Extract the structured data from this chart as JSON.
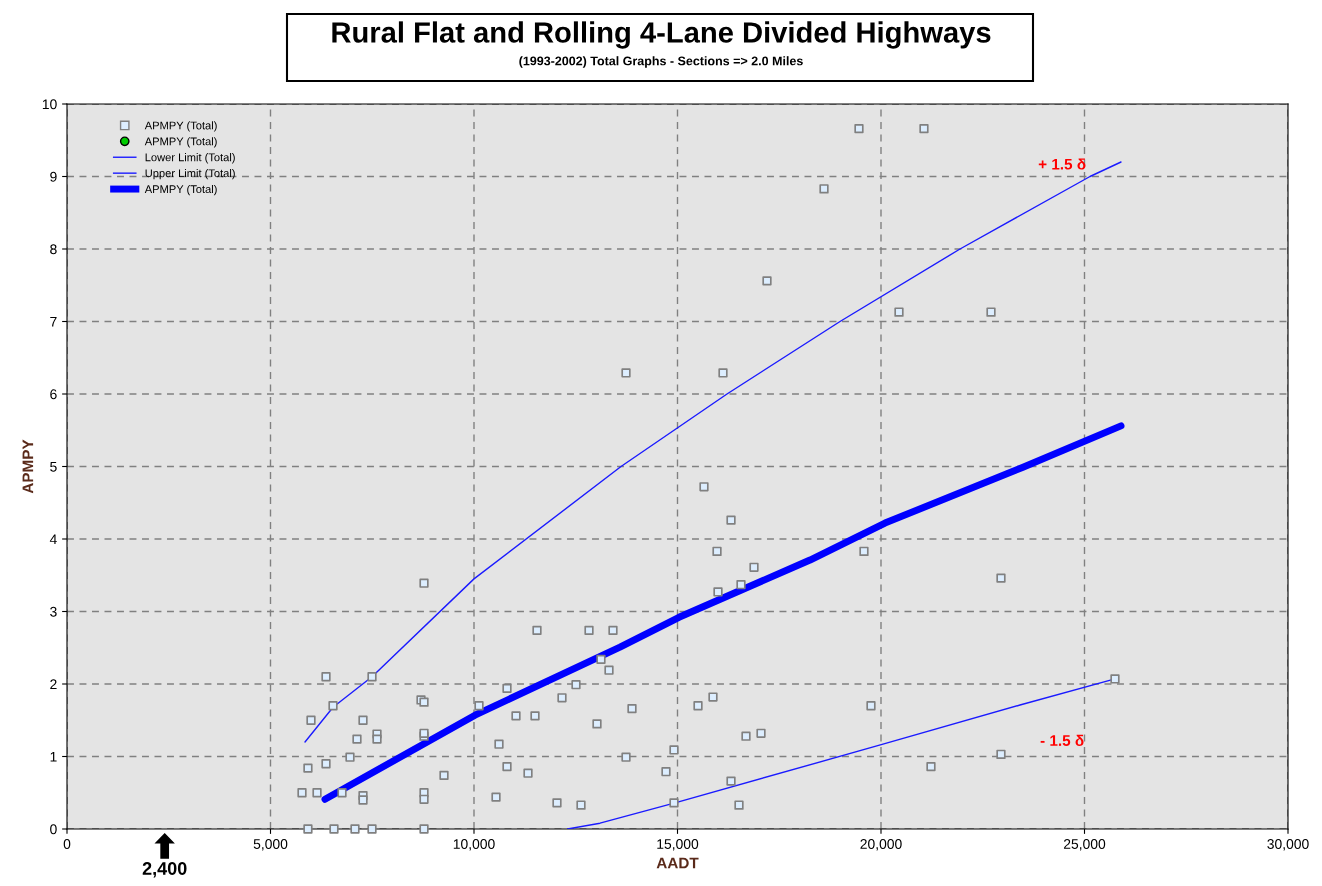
{
  "chart_data": {
    "type": "scatter",
    "title": "Rural Flat and Rolling 4-Lane Divided Highways",
    "subtitle": "(1993-2002) Total Graphs - Sections => 2.0 Miles",
    "xlabel": "AADT",
    "ylabel": "APMPY",
    "xlim": [
      0,
      30000
    ],
    "ylim": [
      0,
      10
    ],
    "xticks": [
      0,
      {
        "value": 5000,
        "label": "5,000"
      },
      {
        "value": 10000,
        "label": "10,000"
      },
      {
        "value": 15000,
        "label": "15,000"
      },
      {
        "value": 20000,
        "label": "20,000"
      },
      {
        "value": 25000,
        "label": "25,000"
      },
      {
        "value": 30000,
        "label": "30,000"
      }
    ],
    "yticks": [
      0,
      1,
      2,
      3,
      4,
      5,
      6,
      7,
      8,
      9,
      10
    ],
    "grid": true,
    "legend": "top left",
    "series": [
      {
        "name": "APMPY (Total)",
        "marker": "square",
        "color": "#ddeeff",
        "x": [
          5774,
          5920,
          5920,
          5995,
          6143,
          6364,
          6364,
          6536,
          6560,
          6757,
          6953,
          7076,
          7125,
          7273,
          7273,
          7273,
          7494,
          7494,
          7617,
          7617,
          8698,
          8772,
          8772,
          8772,
          8772,
          8772,
          8772,
          8772,
          9263,
          10123,
          10541,
          10614,
          10811,
          10811,
          11032,
          11327,
          11499,
          11548,
          12039,
          12162,
          12506,
          12629,
          12826,
          13022,
          13120,
          13317,
          13415,
          13735,
          13735,
          13882,
          14717,
          14914,
          14914,
          15504,
          15651,
          15872,
          15971,
          15995,
          16118,
          16315,
          16315,
          16511,
          16560,
          16683,
          16880,
          17052,
          17199,
          18600,
          19459,
          19582,
          19754,
          20442,
          21056,
          21228,
          22703,
          22948,
          22948,
          25749
        ],
        "values": [
          0.5,
          0,
          0.84,
          1.5,
          0.5,
          0.9,
          2.1,
          1.7,
          0,
          0.5,
          0.99,
          0,
          1.24,
          1.5,
          0.46,
          0.4,
          2.1,
          0,
          1.31,
          1.24,
          1.78,
          1.28,
          1.75,
          1.32,
          3.39,
          0.5,
          0.41,
          0,
          0.74,
          1.7,
          0.44,
          1.17,
          1.94,
          0.86,
          1.56,
          0.77,
          1.56,
          2.74,
          0.36,
          1.81,
          1.99,
          0.33,
          2.74,
          1.45,
          2.34,
          2.19,
          2.74,
          6.29,
          0.99,
          1.66,
          0.79,
          1.09,
          0.36,
          1.7,
          4.72,
          1.82,
          3.83,
          3.27,
          6.29,
          4.26,
          0.66,
          0.33,
          3.37,
          1.28,
          3.61,
          1.32,
          7.56,
          8.83,
          9.66,
          3.83,
          1.7,
          7.13,
          9.66,
          0.86,
          7.13,
          3.46,
          1.03,
          2.07
        ]
      },
      {
        "name": "APMPY (Total)",
        "marker": "circle",
        "color": "#00cc00"
      },
      {
        "name": "Lower Limit (Total)",
        "type": "line",
        "color": "#1a1aff",
        "x": [
          12300,
          13096,
          14939,
          20049,
          23415,
          25749
        ],
        "values": [
          0,
          0.08,
          0.36,
          1.17,
          1.71,
          2.07
        ]
      },
      {
        "name": "Upper Limit (Total)",
        "type": "line",
        "color": "#1a1aff",
        "x": [
          5848,
          6536,
          7494,
          10000,
          13612,
          16216,
          18993,
          21941,
          25135,
          25897
        ],
        "values": [
          1.2,
          1.68,
          2.1,
          3.45,
          5,
          6,
          7,
          8,
          9,
          9.2
        ]
      },
      {
        "name": "APMPY (Total)",
        "type": "line",
        "color": "#0000ff",
        "x": [
          6339,
          10025,
          13587,
          15037,
          18256,
          20098,
          23489,
          25897
        ],
        "values": [
          0.41,
          1.57,
          2.51,
          2.92,
          3.71,
          4.22,
          4.99,
          5.56
        ]
      }
    ],
    "annotations": [
      "+ 1.5 δ",
      "- 1.5 δ",
      "2,400"
    ]
  }
}
